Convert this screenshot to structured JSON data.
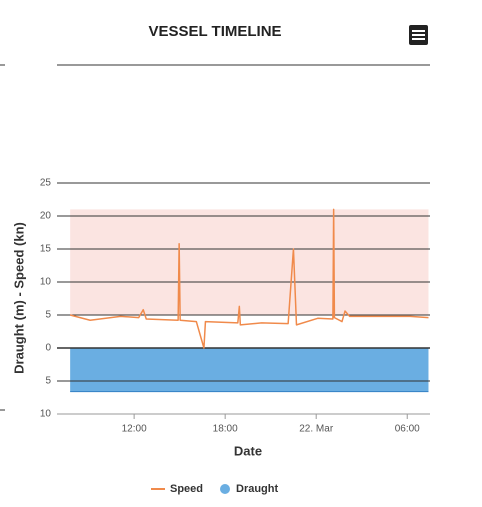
{
  "chart_data": {
    "type": "line",
    "title": "VESSEL TIMELINE",
    "x_label": "Date",
    "y_label": "Draught (m) - Speed (kn)",
    "xlim": [
      "21 Mar 06:55",
      "22 Mar 07:30"
    ],
    "xticks": [
      {
        "value": "21 Mar 12:00",
        "label": "12:00"
      },
      {
        "value": "21 Mar 18:00",
        "label": "18:00"
      },
      {
        "value": "22 Mar 00:00",
        "label": "22. Mar"
      },
      {
        "value": "22 Mar 06:00",
        "label": "06:00"
      }
    ],
    "ylim": [
      -10,
      25
    ],
    "yticks": [
      25,
      20,
      15,
      10,
      5,
      0,
      {
        "value": -5,
        "label": "5"
      },
      {
        "value": -10,
        "label": "10"
      }
    ],
    "grid": true,
    "bands": [
      {
        "from": 5,
        "to": 21,
        "color": "#fbe4e1"
      }
    ],
    "series": [
      {
        "name": "Speed",
        "color": "#f08a4b",
        "x": [
          "21 Mar 07:47",
          "21 Mar 09:06",
          "21 Mar 11:06",
          "21 Mar 12:18",
          "21 Mar 12:36",
          "21 Mar 12:48",
          "21 Mar 14:54",
          "21 Mar 14:58",
          "21 Mar 15:02",
          "21 Mar 16:06",
          "21 Mar 16:36",
          "21 Mar 16:42",
          "21 Mar 18:50",
          "21 Mar 18:56",
          "21 Mar 19:00",
          "21 Mar 20:24",
          "21 Mar 22:09",
          "21 Mar 22:30",
          "21 Mar 22:42",
          "22 Mar 00:06",
          "22 Mar 01:06",
          "22 Mar 01:09",
          "22 Mar 01:12",
          "22 Mar 01:42",
          "22 Mar 01:54",
          "22 Mar 02:12",
          "22 Mar 06:12",
          "22 Mar 07:24"
        ],
        "values": [
          5,
          4.2,
          4.8,
          4.6,
          5.8,
          4.4,
          4.2,
          15.8,
          4.2,
          4.0,
          0,
          4.0,
          3.8,
          6.3,
          3.5,
          3.8,
          3.7,
          15,
          3.5,
          4.5,
          4.4,
          21,
          4.6,
          4.0,
          5.6,
          4.8,
          4.8,
          4.6
        ]
      },
      {
        "name": "Draught",
        "color": "#6aaee2",
        "x": [
          "21 Mar 07:47",
          "22 Mar 07:24"
        ],
        "values": [
          -6.6,
          -6.6
        ]
      }
    ]
  }
}
